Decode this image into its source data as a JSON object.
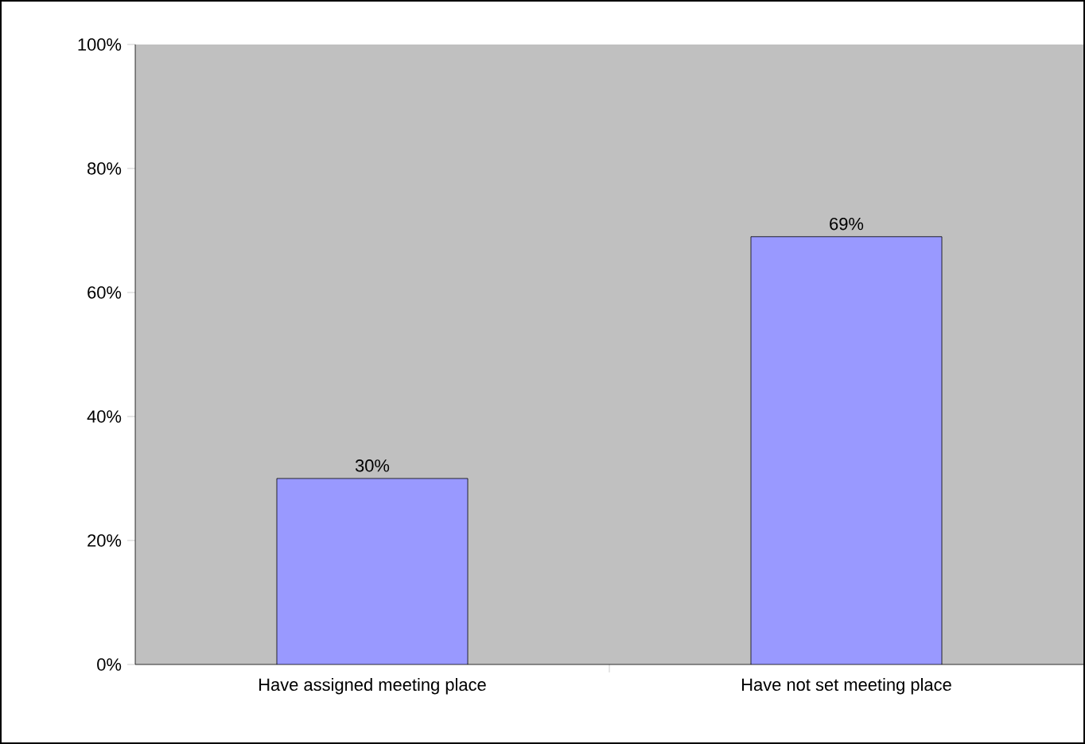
{
  "chart_data": {
    "type": "bar",
    "categories": [
      "Have assigned meeting place",
      "Have not set meeting place"
    ],
    "values": [
      30,
      69
    ],
    "color": "#9999ff",
    "value_labels": [
      "30%",
      "69%"
    ],
    "ylim": [
      0,
      100
    ],
    "yticks": [
      {
        "value": 0,
        "label": "0%"
      },
      {
        "value": 20,
        "label": "20%"
      },
      {
        "value": 40,
        "label": "40%"
      },
      {
        "value": 60,
        "label": "60%"
      },
      {
        "value": 80,
        "label": "80%"
      },
      {
        "value": 100,
        "label": "100%"
      }
    ],
    "grid": false
  }
}
